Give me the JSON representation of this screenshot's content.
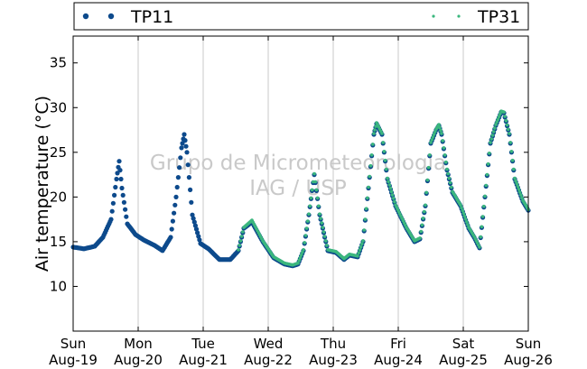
{
  "chart_data": {
    "type": "scatter",
    "title": "",
    "xlabel": "",
    "ylabel": "Air temperature (°C)",
    "x_range": [
      "Aug-19 00:00",
      "Aug-26 00:00"
    ],
    "ylim": [
      5,
      38
    ],
    "y_ticks": [
      10,
      15,
      20,
      25,
      30,
      35
    ],
    "x_ticks": [
      {
        "day": "Sun",
        "date": "Aug-19"
      },
      {
        "day": "Mon",
        "date": "Aug-20"
      },
      {
        "day": "Tue",
        "date": "Aug-21"
      },
      {
        "day": "Wed",
        "date": "Aug-22"
      },
      {
        "day": "Thu",
        "date": "Aug-23"
      },
      {
        "day": "Fri",
        "date": "Aug-24"
      },
      {
        "day": "Sat",
        "date": "Aug-25"
      },
      {
        "day": "Sun",
        "date": "Aug-26"
      }
    ],
    "grid": "vertical",
    "legend_position": "top",
    "watermark": [
      "Grupo de Micrometeorologia",
      "IAG / USP"
    ],
    "series": [
      {
        "name": "TP11",
        "color": "#0d4a8c",
        "marker": "dot",
        "x": [
          "Aug-19 00:00",
          "Aug-19 04:00",
          "Aug-19 08:00",
          "Aug-19 11:00",
          "Aug-19 14:00",
          "Aug-19 16:00",
          "Aug-19 17:00",
          "Aug-19 18:00",
          "Aug-19 20:00",
          "Aug-19 23:00",
          "Aug-20 02:00",
          "Aug-20 06:00",
          "Aug-20 09:00",
          "Aug-20 12:00",
          "Aug-20 14:00",
          "Aug-20 16:00",
          "Aug-20 17:00",
          "Aug-20 18:00",
          "Aug-20 20:00",
          "Aug-20 23:00",
          "Aug-21 02:00",
          "Aug-21 06:00",
          "Aug-21 10:00",
          "Aug-21 13:00",
          "Aug-21 15:00",
          "Aug-21 18:00",
          "Aug-21 22:00",
          "Aug-22 02:00",
          "Aug-22 06:00",
          "Aug-22 09:00",
          "Aug-22 11:00",
          "Aug-22 13:00",
          "Aug-22 15:00",
          "Aug-22 17:00",
          "Aug-22 19:00",
          "Aug-22 22:00",
          "Aug-23 01:00",
          "Aug-23 04:00",
          "Aug-23 06:00",
          "Aug-23 09:00",
          "Aug-23 11:00",
          "Aug-23 13:00",
          "Aug-23 15:00",
          "Aug-23 16:00",
          "Aug-23 18:00",
          "Aug-23 20:00",
          "Aug-23 23:00",
          "Aug-24 03:00",
          "Aug-24 06:00",
          "Aug-24 08:00",
          "Aug-24 10:00",
          "Aug-24 12:00",
          "Aug-24 14:00",
          "Aug-24 15:00",
          "Aug-24 16:00",
          "Aug-24 18:00",
          "Aug-24 20:00",
          "Aug-24 23:00",
          "Aug-25 02:00",
          "Aug-25 04:00",
          "Aug-25 06:00",
          "Aug-25 08:00",
          "Aug-25 10:00",
          "Aug-25 12:00",
          "Aug-25 14:00",
          "Aug-25 15:00",
          "Aug-25 17:00",
          "Aug-25 19:00",
          "Aug-25 22:00",
          "Aug-26 00:00"
        ],
        "y": [
          14.4,
          14.2,
          14.5,
          15.5,
          17.5,
          22,
          24,
          21,
          17,
          15.8,
          15.2,
          14.6,
          14,
          15.5,
          20,
          25.5,
          27,
          25,
          18,
          14.8,
          14.2,
          13,
          13,
          14,
          16.5,
          17.2,
          15,
          13.2,
          12.5,
          12.3,
          12.5,
          14,
          18,
          22.5,
          18,
          14,
          13.8,
          13,
          13.5,
          13.3,
          15,
          21,
          27,
          28.2,
          27,
          22,
          19,
          16.5,
          15,
          15.3,
          19,
          26,
          27.5,
          28,
          27,
          23,
          20.5,
          19,
          16.5,
          15.5,
          14.3,
          20,
          26,
          28,
          29.5,
          29.4,
          27,
          22,
          19.5,
          18.5
        ]
      },
      {
        "name": "TP31",
        "color": "#3bb77e",
        "marker": "point",
        "x": [
          "Aug-21 13:00",
          "Aug-21 15:00",
          "Aug-21 18:00",
          "Aug-21 22:00",
          "Aug-22 02:00",
          "Aug-22 06:00",
          "Aug-22 09:00",
          "Aug-22 11:00",
          "Aug-22 13:00",
          "Aug-22 15:00",
          "Aug-22 17:00",
          "Aug-22 19:00",
          "Aug-22 22:00",
          "Aug-23 01:00",
          "Aug-23 04:00",
          "Aug-23 06:00",
          "Aug-23 09:00",
          "Aug-23 11:00",
          "Aug-23 13:00",
          "Aug-23 15:00",
          "Aug-23 16:00",
          "Aug-23 18:00",
          "Aug-23 20:00",
          "Aug-23 23:00",
          "Aug-24 03:00",
          "Aug-24 06:00",
          "Aug-24 08:00",
          "Aug-24 10:00",
          "Aug-24 12:00",
          "Aug-24 14:00",
          "Aug-24 15:00",
          "Aug-24 16:00",
          "Aug-24 18:00",
          "Aug-24 20:00",
          "Aug-24 23:00",
          "Aug-25 02:00",
          "Aug-25 04:00",
          "Aug-25 06:00",
          "Aug-25 08:00",
          "Aug-25 10:00",
          "Aug-25 12:00",
          "Aug-25 14:00",
          "Aug-25 15:00",
          "Aug-25 17:00",
          "Aug-25 19:00",
          "Aug-25 22:00",
          "Aug-26 00:00"
        ],
        "y": [
          14.1,
          16.6,
          17.4,
          15.1,
          13.3,
          12.6,
          12.4,
          12.6,
          14.1,
          18.1,
          22.6,
          18.1,
          14.1,
          13.9,
          13.1,
          13.6,
          13.4,
          15.1,
          21.1,
          27.1,
          28.3,
          27.1,
          22.1,
          19.1,
          16.6,
          15.1,
          15.4,
          19.1,
          26.1,
          27.6,
          28.1,
          27.1,
          23.1,
          20.6,
          19.1,
          16.6,
          15.6,
          14.4,
          20.1,
          26.1,
          28.1,
          29.6,
          29.5,
          27.1,
          22.1,
          19.6,
          18.6
        ]
      }
    ]
  }
}
